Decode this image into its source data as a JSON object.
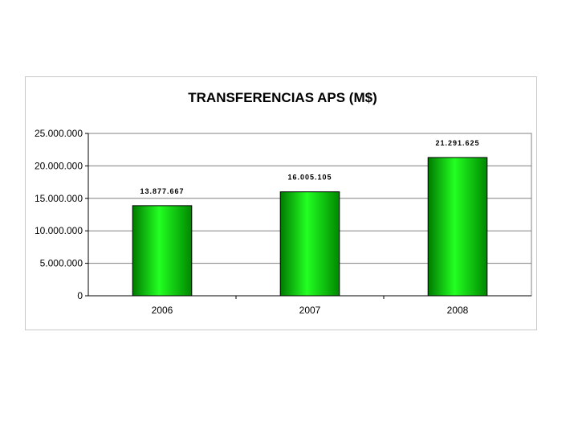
{
  "chart_data": {
    "type": "bar",
    "title": "TRANSFERENCIAS APS (M$)",
    "xlabel": "",
    "ylabel": "",
    "categories": [
      "2006",
      "2007",
      "2008"
    ],
    "values": [
      13877667,
      16005105,
      21291625
    ],
    "data_labels": [
      "13.877.667",
      "16.005.105",
      "21.291.625"
    ],
    "y_ticks": [
      0,
      5000000,
      10000000,
      15000000,
      20000000,
      25000000
    ],
    "y_tick_labels": [
      "0",
      "5.000.000",
      "10.000.000",
      "15.000.000",
      "20.000.000",
      "25.000.000"
    ],
    "ylim": [
      0,
      25000000
    ],
    "grid": true,
    "legend": "none",
    "bar_color": "#00dd00"
  }
}
